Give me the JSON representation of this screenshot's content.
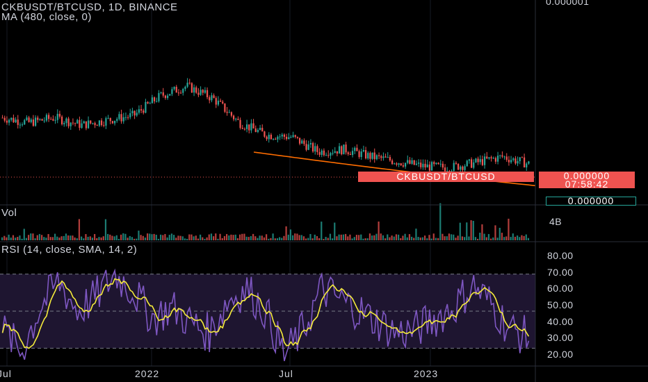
{
  "header": {
    "symbol_line": "CKBUSDT/BTCUSD, 1D, BINANCE",
    "ma_line": "MA (480, close, 0)",
    "vol_label": "Vol",
    "rsi_line": "RSI (14, close, SMA, 14, 2)"
  },
  "price_axis": {
    "top_label": "0.000001",
    "vol_label": "4B",
    "rsi_ticks": [
      "80.00",
      "70.00",
      "60.00",
      "50.00",
      "40.00",
      "30.00",
      "20.00"
    ]
  },
  "price_tag": {
    "symbol": "CKBUSDT/BTCUSD",
    "price": "0.000000",
    "countdown": "07:58:42",
    "ma_value": "0.000000"
  },
  "x_axis": [
    "Jul",
    "2022",
    "Jul",
    "2023"
  ],
  "colors": {
    "background": "#000000",
    "up": "#26a69a",
    "down": "#ef5350",
    "ma_line": "#ff6d00",
    "rsi_line": "#7e57c2",
    "rsi_ma": "#f5eb3b",
    "rsi_band": "#1e1530"
  },
  "chart_data": [
    {
      "type": "candlestick",
      "name": "CKBUSDT/BTCUSD, 1D, BINANCE",
      "x": [
        "2021-07",
        "2021-08",
        "2021-09",
        "2021-10",
        "2021-11",
        "2021-12",
        "2022-01",
        "2022-02",
        "2022-03",
        "2022-04",
        "2022-05",
        "2022-06",
        "2022-07",
        "2022-08",
        "2022-09",
        "2022-10",
        "2022-11",
        "2022-12",
        "2023-01",
        "2023-02",
        "2023-03"
      ],
      "close_shape": [
        0.66,
        0.62,
        0.66,
        0.6,
        0.64,
        0.68,
        0.84,
        0.92,
        0.82,
        0.62,
        0.52,
        0.5,
        0.38,
        0.4,
        0.34,
        0.3,
        0.26,
        0.25,
        0.29,
        0.34,
        0.28
      ],
      "ma_line": "MA (480, close, 0)",
      "last_value": "0.000000"
    },
    {
      "type": "bar",
      "name": "Vol",
      "scale_label": "4B"
    },
    {
      "type": "line",
      "name": "RSI (14, close, SMA, 14, 2)",
      "ylim": [
        20,
        80
      ],
      "upper_band": 70,
      "middle_band": 50,
      "lower_band": 30,
      "series_shape": [
        40,
        28,
        52,
        66,
        50,
        58,
        70,
        60,
        46,
        52,
        44,
        38,
        56,
        62,
        50,
        26,
        40,
        62,
        56,
        50,
        44,
        38,
        40,
        46,
        52,
        64,
        54,
        40,
        36
      ]
    }
  ]
}
